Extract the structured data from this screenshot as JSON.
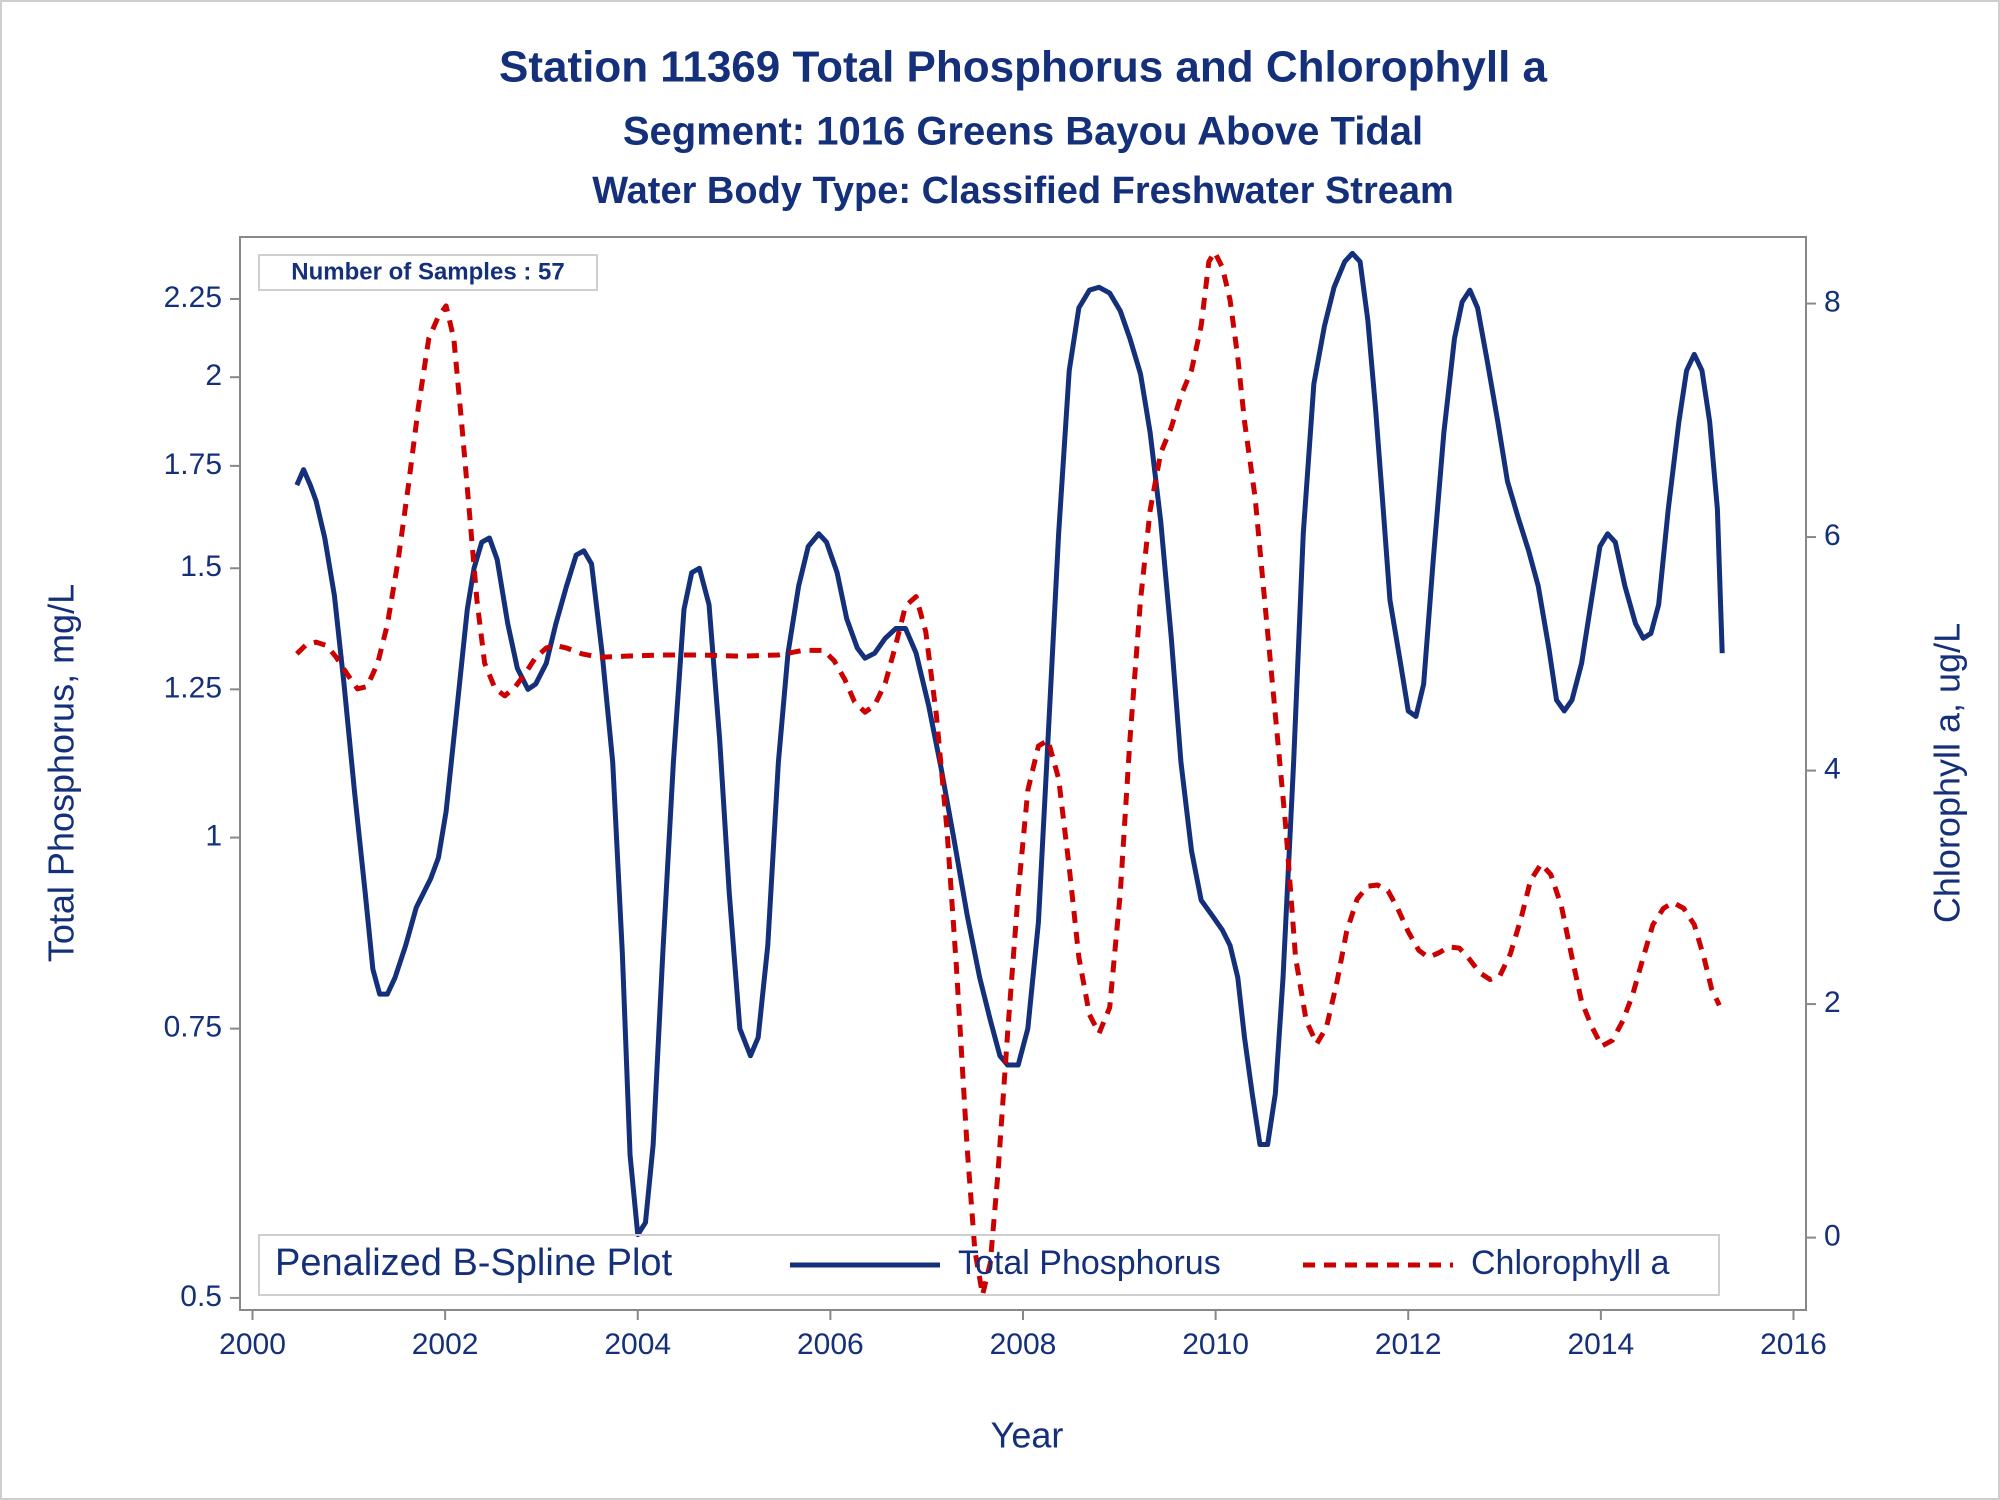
{
  "chart_data": {
    "type": "line",
    "title": "Station 11369  Total Phosphorus and Chlorophyll a",
    "subtitle": "Segment: 1016  Greens Bayou Above Tidal",
    "subtitle2": "Water Body Type: Classified Freshwater Stream",
    "xlabel": "Year",
    "ylabel": "Total Phosphorus, mg/L",
    "y2label": "Chlorophyll a, ug/L",
    "annotation": "Number of Samples : 57",
    "legend_title": "Penalized B-Spline Plot",
    "legend_position": "bottom",
    "ylog": true,
    "xlim": [
      1999.87,
      2016.13
    ],
    "xticks": [
      2000,
      2002,
      2004,
      2006,
      2008,
      2010,
      2012,
      2014,
      2016
    ],
    "ylim": [
      0.491,
      2.47
    ],
    "yticks": [
      0.5,
      0.75,
      1,
      1.25,
      1.5,
      1.75,
      2,
      2.25
    ],
    "y2lim": [
      -0.62,
      8.57
    ],
    "y2ticks": [
      0,
      2,
      4,
      6,
      8
    ],
    "series": [
      {
        "name": "Total Phosphorus",
        "color": "#14307a",
        "line_style": "solid",
        "x": [
          2000.46,
          2000.53,
          2000.6,
          2000.66,
          2000.75,
          2000.85,
          2000.95,
          2001.06,
          2001.17,
          2001.25,
          2001.32,
          2001.4,
          2001.48,
          2001.59,
          2001.7,
          2001.85,
          2001.93,
          2002.01,
          2002.12,
          2002.23,
          2002.3,
          2002.38,
          2002.46,
          2002.54,
          2002.65,
          2002.75,
          2002.86,
          2002.94,
          2003.05,
          2003.15,
          2003.26,
          2003.36,
          2003.44,
          2003.52,
          2003.63,
          2003.74,
          2003.84,
          2003.92,
          2004.0,
          2004.08,
          2004.16,
          2004.26,
          2004.37,
          2004.48,
          2004.56,
          2004.64,
          2004.74,
          2004.85,
          2004.95,
          2005.06,
          2005.17,
          2005.25,
          2005.35,
          2005.46,
          2005.56,
          2005.67,
          2005.77,
          2005.88,
          2005.96,
          2006.07,
          2006.17,
          2006.28,
          2006.36,
          2006.46,
          2006.57,
          2006.68,
          2006.78,
          2006.89,
          2007.02,
          2007.15,
          2007.28,
          2007.42,
          2007.55,
          2007.66,
          2007.76,
          2007.84,
          2007.95,
          2008.05,
          2008.16,
          2008.26,
          2008.37,
          2008.48,
          2008.58,
          2008.69,
          2008.79,
          2008.9,
          2009.01,
          2009.11,
          2009.22,
          2009.32,
          2009.43,
          2009.54,
          2009.64,
          2009.75,
          2009.85,
          2009.96,
          2010.07,
          2010.15,
          2010.23,
          2010.3,
          2010.38,
          2010.46,
          2010.54,
          2010.62,
          2010.7,
          2010.81,
          2010.91,
          2011.02,
          2011.13,
          2011.23,
          2011.34,
          2011.42,
          2011.5,
          2011.58,
          2011.66,
          2011.74,
          2011.81,
          2011.92,
          2012.0,
          2012.08,
          2012.16,
          2012.26,
          2012.37,
          2012.48,
          2012.56,
          2012.64,
          2012.72,
          2012.82,
          2012.93,
          2013.03,
          2013.14,
          2013.25,
          2013.35,
          2013.46,
          2013.54,
          2013.62,
          2013.7,
          2013.8,
          2013.91,
          2013.99,
          2014.07,
          2014.15,
          2014.25,
          2014.36,
          2014.44,
          2014.52,
          2014.6,
          2014.7,
          2014.81,
          2014.89,
          2014.97,
          2015.05,
          2015.13,
          2015.21,
          2015.26
        ],
        "values": [
          1.7,
          1.74,
          1.7,
          1.66,
          1.57,
          1.44,
          1.26,
          1.07,
          0.92,
          0.82,
          0.79,
          0.79,
          0.81,
          0.85,
          0.9,
          0.94,
          0.97,
          1.04,
          1.21,
          1.41,
          1.5,
          1.56,
          1.57,
          1.52,
          1.38,
          1.29,
          1.25,
          1.26,
          1.3,
          1.38,
          1.46,
          1.53,
          1.54,
          1.51,
          1.32,
          1.12,
          0.84,
          0.62,
          0.55,
          0.56,
          0.63,
          0.84,
          1.12,
          1.41,
          1.49,
          1.5,
          1.42,
          1.16,
          0.92,
          0.75,
          0.72,
          0.74,
          0.85,
          1.12,
          1.32,
          1.46,
          1.55,
          1.58,
          1.56,
          1.49,
          1.39,
          1.33,
          1.31,
          1.32,
          1.35,
          1.37,
          1.37,
          1.32,
          1.22,
          1.11,
          1.0,
          0.89,
          0.81,
          0.76,
          0.72,
          0.71,
          0.71,
          0.75,
          0.88,
          1.16,
          1.58,
          2.02,
          2.22,
          2.28,
          2.29,
          2.27,
          2.21,
          2.12,
          2.01,
          1.84,
          1.61,
          1.35,
          1.12,
          0.98,
          0.91,
          0.89,
          0.87,
          0.85,
          0.81,
          0.74,
          0.68,
          0.63,
          0.63,
          0.68,
          0.81,
          1.12,
          1.58,
          1.98,
          2.16,
          2.29,
          2.38,
          2.41,
          2.38,
          2.18,
          1.91,
          1.64,
          1.43,
          1.3,
          1.21,
          1.2,
          1.26,
          1.52,
          1.84,
          2.12,
          2.24,
          2.28,
          2.22,
          2.05,
          1.87,
          1.71,
          1.62,
          1.54,
          1.46,
          1.33,
          1.23,
          1.21,
          1.23,
          1.3,
          1.44,
          1.55,
          1.58,
          1.56,
          1.46,
          1.38,
          1.35,
          1.36,
          1.42,
          1.64,
          1.87,
          2.02,
          2.07,
          2.02,
          1.87,
          1.64,
          1.32
        ]
      },
      {
        "name": "Chlorophyll a",
        "color": "#cc0000",
        "line_style": "dashed",
        "axis": "y2",
        "x": [
          2000.46,
          2000.56,
          2000.66,
          2000.77,
          2000.87,
          2000.98,
          2001.09,
          2001.19,
          2001.3,
          2001.4,
          2001.51,
          2001.62,
          2001.72,
          2001.83,
          2001.93,
          2002.01,
          2002.09,
          2002.17,
          2002.25,
          2002.33,
          2002.41,
          2002.52,
          2002.62,
          2002.73,
          2002.83,
          2002.94,
          2003.05,
          2003.15,
          2003.26,
          2003.42,
          2003.6,
          2003.87,
          2004.26,
          2004.66,
          2005.06,
          2005.46,
          2005.72,
          2005.93,
          2006.04,
          2006.15,
          2006.25,
          2006.36,
          2006.46,
          2006.57,
          2006.68,
          2006.78,
          2006.89,
          2006.99,
          2007.1,
          2007.21,
          2007.31,
          2007.42,
          2007.5,
          2007.58,
          2007.66,
          2007.74,
          2007.84,
          2007.95,
          2008.05,
          2008.16,
          2008.26,
          2008.37,
          2008.48,
          2008.58,
          2008.69,
          2008.79,
          2008.9,
          2009.01,
          2009.11,
          2009.22,
          2009.32,
          2009.43,
          2009.54,
          2009.64,
          2009.75,
          2009.85,
          2009.93,
          2009.99,
          2010.07,
          2010.15,
          2010.23,
          2010.3,
          2010.41,
          2010.52,
          2010.62,
          2010.73,
          2010.83,
          2010.94,
          2011.05,
          2011.15,
          2011.26,
          2011.36,
          2011.47,
          2011.58,
          2011.68,
          2011.79,
          2011.89,
          2012.0,
          2012.11,
          2012.21,
          2012.32,
          2012.42,
          2012.53,
          2012.64,
          2012.74,
          2012.85,
          2012.95,
          2013.06,
          2013.17,
          2013.27,
          2013.38,
          2013.48,
          2013.59,
          2013.7,
          2013.8,
          2013.91,
          2014.01,
          2014.12,
          2014.23,
          2014.33,
          2014.44,
          2014.54,
          2014.65,
          2014.75,
          2014.86,
          2014.97,
          2015.07,
          2015.15,
          2015.23
        ],
        "values": [
          5.0,
          5.08,
          5.1,
          5.07,
          4.97,
          4.83,
          4.7,
          4.72,
          4.92,
          5.25,
          5.79,
          6.45,
          7.1,
          7.7,
          7.89,
          7.98,
          7.7,
          6.99,
          6.23,
          5.46,
          4.92,
          4.7,
          4.64,
          4.72,
          4.83,
          4.97,
          5.05,
          5.07,
          5.05,
          5.0,
          4.97,
          4.98,
          4.99,
          4.99,
          4.98,
          4.99,
          5.03,
          5.03,
          4.94,
          4.78,
          4.59,
          4.5,
          4.56,
          4.75,
          5.08,
          5.41,
          5.49,
          5.19,
          4.48,
          3.5,
          2.3,
          0.77,
          -0.11,
          -0.49,
          -0.22,
          0.55,
          1.75,
          2.95,
          3.83,
          4.21,
          4.26,
          3.93,
          3.17,
          2.4,
          1.91,
          1.75,
          1.97,
          2.95,
          4.26,
          5.46,
          6.23,
          6.72,
          6.94,
          7.21,
          7.43,
          7.81,
          8.36,
          8.44,
          8.31,
          8.03,
          7.54,
          6.99,
          6.34,
          5.36,
          4.48,
          3.5,
          2.4,
          1.86,
          1.66,
          1.8,
          2.19,
          2.62,
          2.9,
          3.01,
          3.02,
          2.97,
          2.82,
          2.62,
          2.46,
          2.4,
          2.44,
          2.49,
          2.48,
          2.38,
          2.27,
          2.21,
          2.24,
          2.43,
          2.73,
          3.06,
          3.2,
          3.11,
          2.84,
          2.4,
          2.02,
          1.8,
          1.64,
          1.69,
          1.86,
          2.08,
          2.4,
          2.68,
          2.82,
          2.87,
          2.82,
          2.68,
          2.4,
          2.13,
          1.99
        ]
      }
    ]
  }
}
